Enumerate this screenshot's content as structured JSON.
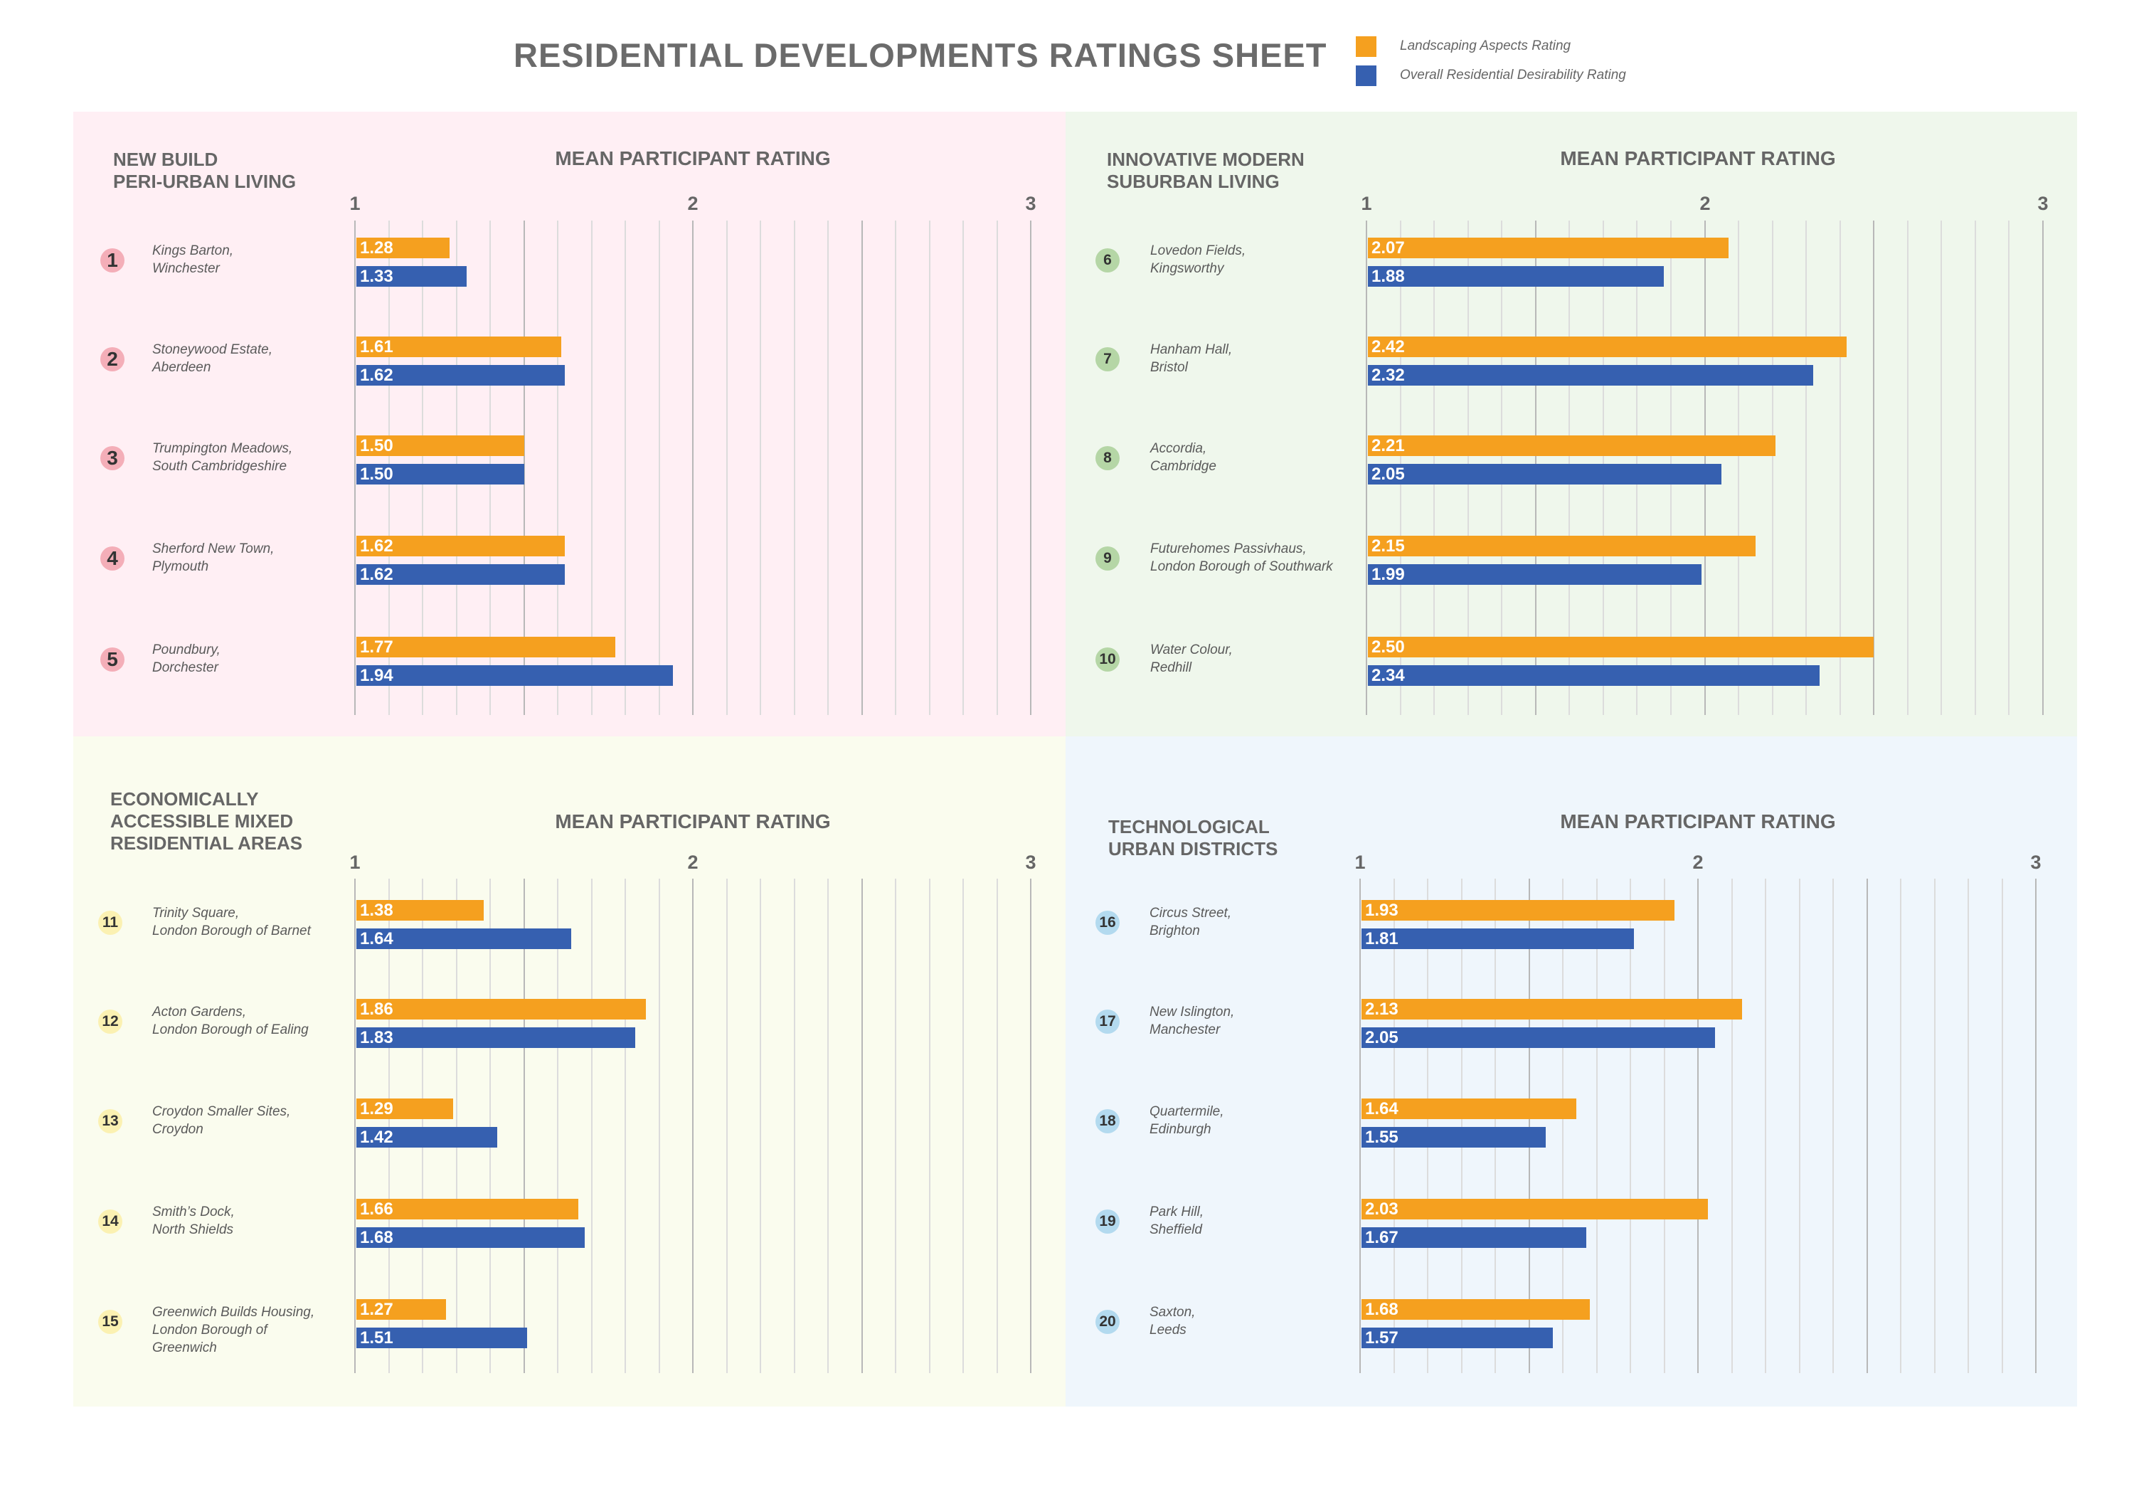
{
  "title": "RESIDENTIAL DEVELOPMENTS RATINGS SHEET",
  "legend": [
    {
      "label": "Landscaping Aspects Rating",
      "color": "#F5A01F"
    },
    {
      "label": "Overall Residential Desirability Rating",
      "color": "#3660B0"
    }
  ],
  "chart_data": [
    {
      "type": "bar",
      "title": "NEW BUILD\nPERI-URBAN LIVING",
      "xlabel": "MEAN PARTICIPANT RATING",
      "xlim": [
        1,
        3
      ],
      "ticks": [
        "1",
        "2",
        "3"
      ],
      "background": "#FFEFF4",
      "badge_color": "#F4AEB8",
      "categories": [
        {
          "num": "1",
          "name": "Kings Barton,\nWinchester"
        },
        {
          "num": "2",
          "name": "Stoneywood Estate,\nAberdeen"
        },
        {
          "num": "3",
          "name": "Trumpington Meadows,\nSouth Cambridgeshire"
        },
        {
          "num": "4",
          "name": "Sherford New Town,\nPlymouth"
        },
        {
          "num": "5",
          "name": "Poundbury,\nDorchester"
        }
      ],
      "series": [
        {
          "name": "Landscaping Aspects Rating",
          "color": "#F5A01F",
          "values": [
            1.28,
            1.61,
            1.5,
            1.62,
            1.77
          ],
          "labels": [
            "1.28",
            "1.61",
            "1.50",
            "1.62",
            "1.77"
          ]
        },
        {
          "name": "Overall Residential Desirability Rating",
          "color": "#3660B0",
          "values": [
            1.33,
            1.62,
            1.5,
            1.62,
            1.94
          ],
          "labels": [
            "1.33",
            "1.62",
            "1.50",
            "1.62",
            "1.94"
          ]
        }
      ]
    },
    {
      "type": "bar",
      "title": "INNOVATIVE MODERN\nSUBURBAN LIVING",
      "xlabel": "MEAN PARTICIPANT RATING",
      "xlim": [
        1,
        3
      ],
      "ticks": [
        "1",
        "2",
        "3"
      ],
      "background": "#EFF7EC",
      "badge_color": "#B5D6A6",
      "categories": [
        {
          "num": "6",
          "name": "Lovedon Fields,\nKingsworthy"
        },
        {
          "num": "7",
          "name": "Hanham Hall,\nBristol"
        },
        {
          "num": "8",
          "name": "Accordia,\nCambridge"
        },
        {
          "num": "9",
          "name": "Futurehomes Passivhaus,\nLondon Borough of Southwark"
        },
        {
          "num": "10",
          "name": "Water Colour,\nRedhill"
        }
      ],
      "series": [
        {
          "name": "Landscaping Aspects Rating",
          "color": "#F5A01F",
          "values": [
            2.07,
            2.42,
            2.21,
            2.15,
            2.5
          ],
          "labels": [
            "2.07",
            "2.42",
            "2.21",
            "2.15",
            "2.50"
          ]
        },
        {
          "name": "Overall Residential Desirability Rating",
          "color": "#3660B0",
          "values": [
            1.88,
            2.32,
            2.05,
            1.99,
            2.34
          ],
          "labels": [
            "1.88",
            "2.32",
            "2.05",
            "1.99",
            "2.34"
          ]
        }
      ]
    },
    {
      "type": "bar",
      "title": "ECONOMICALLY\nACCESSIBLE MIXED\nRESIDENTIAL AREAS",
      "xlabel": "MEAN PARTICIPANT RATING",
      "xlim": [
        1,
        3
      ],
      "ticks": [
        "1",
        "2",
        "3"
      ],
      "background": "#FAFCEE",
      "badge_color": "#FBF1B2",
      "categories": [
        {
          "num": "11",
          "name": "Trinity Square,\nLondon Borough of Barnet"
        },
        {
          "num": "12",
          "name": "Acton Gardens,\nLondon Borough of Ealing"
        },
        {
          "num": "13",
          "name": "Croydon Smaller Sites,\nCroydon"
        },
        {
          "num": "14",
          "name": "Smith’s Dock,\nNorth Shields"
        },
        {
          "num": "15",
          "name": "Greenwich Builds Housing,\nLondon Borough of\nGreenwich"
        }
      ],
      "series": [
        {
          "name": "Landscaping Aspects Rating",
          "color": "#F5A01F",
          "values": [
            1.38,
            1.86,
            1.29,
            1.66,
            1.27
          ],
          "labels": [
            "1.38",
            "1.86",
            "1.29",
            "1.66",
            "1.27"
          ]
        },
        {
          "name": "Overall Residential Desirability Rating",
          "color": "#3660B0",
          "values": [
            1.64,
            1.83,
            1.42,
            1.68,
            1.51
          ],
          "labels": [
            "1.64",
            "1.83",
            "1.42",
            "1.68",
            "1.51"
          ]
        }
      ]
    },
    {
      "type": "bar",
      "title": "TECHNOLOGICAL\nURBAN DISTRICTS",
      "xlabel": "MEAN PARTICIPANT RATING",
      "xlim": [
        1,
        3
      ],
      "ticks": [
        "1",
        "2",
        "3"
      ],
      "background": "#EFF6FC",
      "badge_color": "#B3DAEF",
      "categories": [
        {
          "num": "16",
          "name": "Circus Street,\nBrighton"
        },
        {
          "num": "17",
          "name": "New Islington,\nManchester"
        },
        {
          "num": "18",
          "name": "Quartermile,\nEdinburgh"
        },
        {
          "num": "19",
          "name": "Park Hill,\nSheffield"
        },
        {
          "num": "20",
          "name": "Saxton,\nLeeds"
        }
      ],
      "series": [
        {
          "name": "Landscaping Aspects Rating",
          "color": "#F5A01F",
          "values": [
            1.93,
            2.13,
            1.64,
            2.03,
            1.68
          ],
          "labels": [
            "1.93",
            "2.13",
            "1.64",
            "2.03",
            "1.68"
          ]
        },
        {
          "name": "Overall Residential Desirability Rating",
          "color": "#3660B0",
          "values": [
            1.81,
            2.05,
            1.55,
            1.67,
            1.57
          ],
          "labels": [
            "1.81",
            "2.05",
            "1.55",
            "1.67",
            "1.57"
          ]
        }
      ]
    }
  ]
}
